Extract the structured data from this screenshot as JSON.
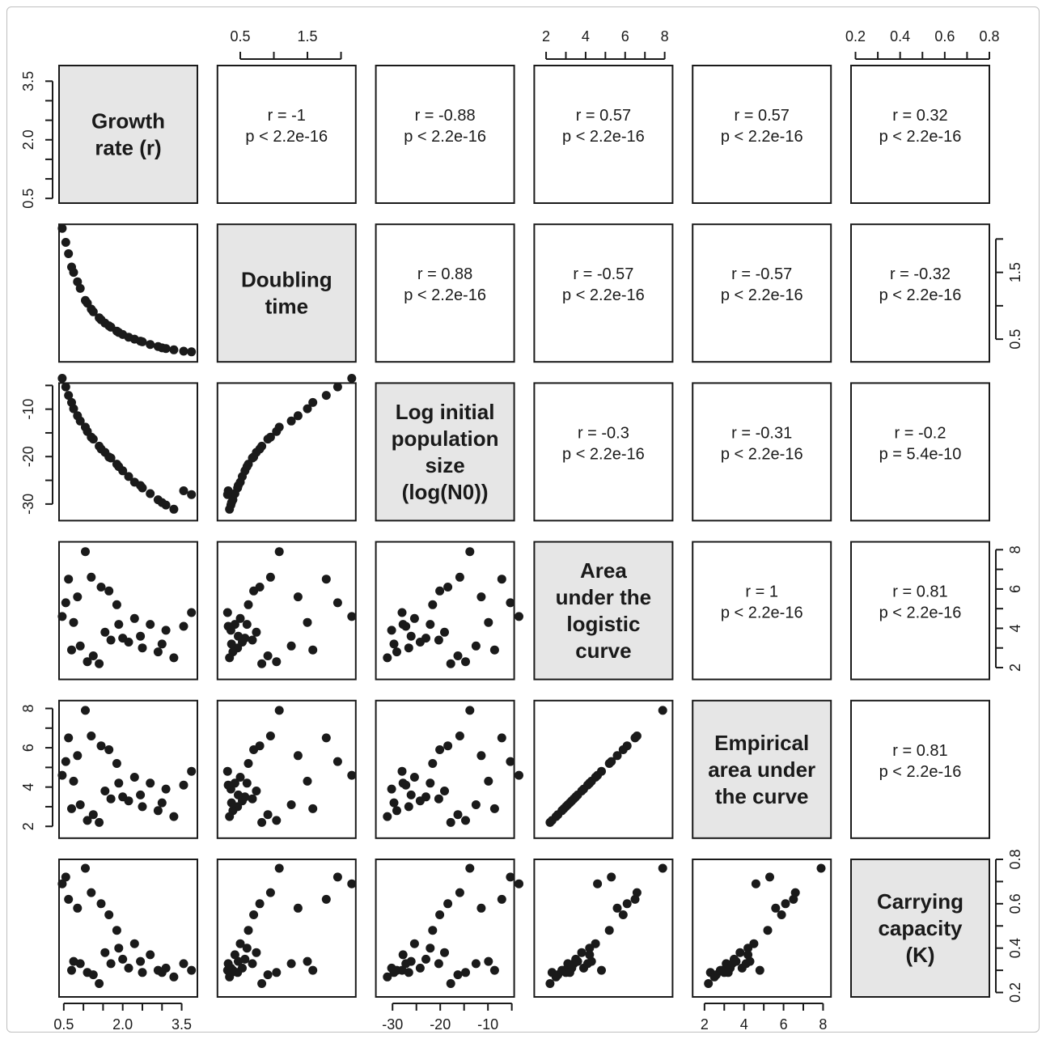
{
  "chart_data": {
    "type": "scatter",
    "layout": "pairs-matrix",
    "variables": [
      {
        "id": "r",
        "label": [
          "Growth",
          "rate (r)"
        ],
        "ticks": [
          0.5,
          2.0,
          3.5
        ],
        "tick_labels": [
          "0.5",
          "2.0",
          "3.5"
        ],
        "minor_ticks": [
          0.5,
          1.0,
          1.5,
          2.0,
          2.5,
          3.0,
          3.5
        ],
        "lim": [
          0.38,
          3.9
        ]
      },
      {
        "id": "dt",
        "label": [
          "Doubling",
          "time"
        ],
        "ticks": [
          0.5,
          1.5
        ],
        "tick_labels": [
          "0.5",
          "1.5"
        ],
        "minor_ticks": [
          0.5,
          1.0,
          1.5,
          2.0
        ],
        "lim": [
          0.16,
          2.22
        ]
      },
      {
        "id": "logN0",
        "label": [
          "Log initial",
          "population",
          "size",
          "(log(N0))"
        ],
        "ticks": [
          -30,
          -20,
          -10
        ],
        "tick_labels": [
          "-30",
          "-20",
          "-10"
        ],
        "minor_ticks": [
          -30,
          -25,
          -20,
          -15,
          -10,
          -5
        ],
        "lim": [
          -33.5,
          -4.5
        ]
      },
      {
        "id": "auc",
        "label": [
          "Area",
          "under the",
          "logistic",
          "curve"
        ],
        "ticks": [
          2,
          4,
          6,
          8
        ],
        "tick_labels": [
          "2",
          "4",
          "6",
          "8"
        ],
        "minor_ticks": [
          2,
          3,
          4,
          5,
          6,
          7,
          8
        ],
        "lim": [
          1.4,
          8.4
        ]
      },
      {
        "id": "eauc",
        "label": [
          "Empirical",
          "area under",
          "the curve"
        ],
        "ticks": [
          2,
          4,
          6,
          8
        ],
        "tick_labels": [
          "2",
          "4",
          "6",
          "8"
        ],
        "minor_ticks": [
          2,
          3,
          4,
          5,
          6,
          7,
          8
        ],
        "lim": [
          1.4,
          8.4
        ]
      },
      {
        "id": "K",
        "label": [
          "Carrying",
          "capacity",
          "(K)"
        ],
        "ticks": [
          0.2,
          0.4,
          0.6,
          0.8
        ],
        "tick_labels": [
          "0.2",
          "0.4",
          "0.6",
          "0.8"
        ],
        "minor_ticks": [
          0.2,
          0.3,
          0.4,
          0.5,
          0.6,
          0.7,
          0.8
        ],
        "lim": [
          0.18,
          0.8
        ]
      }
    ],
    "correlations": [
      {
        "pair": [
          "r",
          "dt"
        ],
        "r_text": "r = -1",
        "p_text": "p < 2.2e-16"
      },
      {
        "pair": [
          "r",
          "logN0"
        ],
        "r_text": "r = -0.88",
        "p_text": "p < 2.2e-16"
      },
      {
        "pair": [
          "r",
          "auc"
        ],
        "r_text": "r = 0.57",
        "p_text": "p < 2.2e-16"
      },
      {
        "pair": [
          "r",
          "eauc"
        ],
        "r_text": "r = 0.57",
        "p_text": "p < 2.2e-16"
      },
      {
        "pair": [
          "r",
          "K"
        ],
        "r_text": "r = 0.32",
        "p_text": "p < 2.2e-16"
      },
      {
        "pair": [
          "dt",
          "logN0"
        ],
        "r_text": "r = 0.88",
        "p_text": "p < 2.2e-16"
      },
      {
        "pair": [
          "dt",
          "auc"
        ],
        "r_text": "r = -0.57",
        "p_text": "p < 2.2e-16"
      },
      {
        "pair": [
          "dt",
          "eauc"
        ],
        "r_text": "r = -0.57",
        "p_text": "p < 2.2e-16"
      },
      {
        "pair": [
          "dt",
          "K"
        ],
        "r_text": "r = -0.32",
        "p_text": "p < 2.2e-16"
      },
      {
        "pair": [
          "logN0",
          "auc"
        ],
        "r_text": "r = -0.3",
        "p_text": "p < 2.2e-16"
      },
      {
        "pair": [
          "logN0",
          "eauc"
        ],
        "r_text": "r = -0.31",
        "p_text": "p < 2.2e-16"
      },
      {
        "pair": [
          "logN0",
          "K"
        ],
        "r_text": "r = -0.2",
        "p_text": "p = 5.4e-10"
      },
      {
        "pair": [
          "auc",
          "eauc"
        ],
        "r_text": "r = 1",
        "p_text": "p < 2.2e-16"
      },
      {
        "pair": [
          "auc",
          "K"
        ],
        "r_text": "r = 0.81",
        "p_text": "p < 2.2e-16"
      },
      {
        "pair": [
          "eauc",
          "K"
        ],
        "r_text": "r = 0.81",
        "p_text": "p < 2.2e-16"
      }
    ],
    "observations": {
      "columns": [
        "r",
        "dt",
        "logN0",
        "auc",
        "eauc",
        "K"
      ],
      "rows": [
        [
          0.46,
          2.16,
          -3.5,
          4.6,
          4.6,
          0.69
        ],
        [
          0.62,
          1.78,
          -7.1,
          6.5,
          6.5,
          0.62
        ],
        [
          0.75,
          1.5,
          -9.9,
          4.3,
          4.3,
          0.34
        ],
        [
          0.92,
          1.26,
          -12.5,
          3.1,
          3.1,
          0.33
        ],
        [
          1.1,
          1.04,
          -14.7,
          2.3,
          2.3,
          0.29
        ],
        [
          1.25,
          0.91,
          -16.3,
          2.6,
          2.6,
          0.28
        ],
        [
          1.4,
          0.82,
          -17.8,
          2.2,
          2.2,
          0.24
        ],
        [
          1.55,
          0.74,
          -19.1,
          3.8,
          3.8,
          0.38
        ],
        [
          1.7,
          0.68,
          -20.3,
          3.4,
          3.4,
          0.33
        ],
        [
          1.85,
          0.62,
          -21.6,
          5.2,
          5.2,
          0.48
        ],
        [
          2.0,
          0.57,
          -23.0,
          3.5,
          3.5,
          0.35
        ],
        [
          2.15,
          0.53,
          -24.2,
          3.3,
          3.3,
          0.31
        ],
        [
          2.3,
          0.5,
          -25.4,
          4.5,
          4.5,
          0.42
        ],
        [
          2.5,
          0.46,
          -26.6,
          3.0,
          3.0,
          0.29
        ],
        [
          2.7,
          0.42,
          -27.8,
          4.2,
          4.2,
          0.37
        ],
        [
          2.9,
          0.39,
          -29.1,
          2.8,
          2.8,
          0.3
        ],
        [
          3.1,
          0.36,
          -30.2,
          3.9,
          3.9,
          0.31
        ],
        [
          3.3,
          0.34,
          -31.1,
          2.5,
          2.5,
          0.27
        ],
        [
          3.55,
          0.32,
          -27.2,
          4.1,
          4.1,
          0.33
        ],
        [
          3.75,
          0.31,
          -28.0,
          4.8,
          4.8,
          0.3
        ],
        [
          1.05,
          1.08,
          -13.8,
          7.9,
          7.9,
          0.76
        ],
        [
          1.2,
          0.95,
          -15.9,
          6.6,
          6.6,
          0.65
        ],
        [
          0.85,
          1.36,
          -11.4,
          5.6,
          5.6,
          0.58
        ],
        [
          1.45,
          0.79,
          -18.4,
          6.1,
          6.1,
          0.6
        ],
        [
          1.65,
          0.7,
          -20.1,
          5.9,
          5.9,
          0.55
        ],
        [
          0.55,
          1.95,
          -5.3,
          5.3,
          5.3,
          0.72
        ],
        [
          0.7,
          1.58,
          -8.6,
          2.9,
          2.9,
          0.3
        ],
        [
          1.9,
          0.6,
          -22.1,
          4.2,
          4.2,
          0.4
        ],
        [
          2.45,
          0.47,
          -26.1,
          3.6,
          3.6,
          0.34
        ],
        [
          3.0,
          0.37,
          -29.7,
          3.2,
          3.2,
          0.29
        ]
      ]
    }
  }
}
